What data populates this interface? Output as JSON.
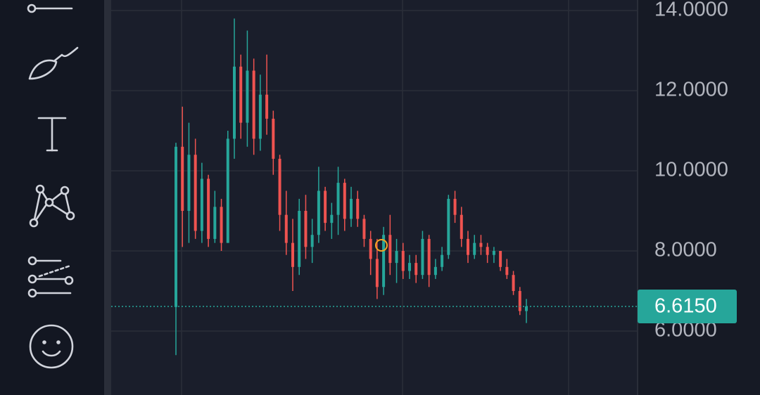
{
  "chart_data": {
    "type": "candlestick",
    "open": [
      6.6,
      10.6,
      9.0,
      10.4,
      8.5,
      9.8,
      8.3,
      9.1,
      8.2,
      10.8,
      12.6,
      11.2,
      12.5,
      10.8,
      11.9,
      11.3,
      10.3,
      8.9,
      8.2,
      7.6,
      9.0,
      8.1,
      8.4,
      9.5,
      8.7,
      8.9,
      9.7,
      8.8,
      9.3,
      8.8,
      8.3,
      7.8,
      7.1,
      8.4,
      7.7,
      8.0,
      7.5,
      7.7,
      7.4,
      8.3,
      7.4,
      7.6,
      7.9,
      9.3,
      8.9,
      8.3,
      7.9,
      8.2,
      8.1,
      7.9,
      8.0,
      7.6,
      7.4,
      7.0,
      6.5
    ],
    "high": [
      10.7,
      11.6,
      11.2,
      10.8,
      10.2,
      9.9,
      9.5,
      9.3,
      11.0,
      13.8,
      12.9,
      13.5,
      12.8,
      12.4,
      12.9,
      11.5,
      10.4,
      9.5,
      8.8,
      9.3,
      9.4,
      8.8,
      10.1,
      9.6,
      9.2,
      10.1,
      9.8,
      9.6,
      9.5,
      8.9,
      8.5,
      8.3,
      8.6,
      8.9,
      8.3,
      8.2,
      7.9,
      7.9,
      8.5,
      8.4,
      7.8,
      8.1,
      9.4,
      9.5,
      9.1,
      8.5,
      8.4,
      8.4,
      8.2,
      8.1,
      8.0,
      7.8,
      7.5,
      7.1,
      6.8
    ],
    "low": [
      5.4,
      8.1,
      8.2,
      8.3,
      8.2,
      8.1,
      8.2,
      8.0,
      8.2,
      10.3,
      10.8,
      10.6,
      10.4,
      10.5,
      10.9,
      9.9,
      8.5,
      7.9,
      7.0,
      7.4,
      7.8,
      7.7,
      8.2,
      8.5,
      8.3,
      8.4,
      8.5,
      8.6,
      8.6,
      8.1,
      7.4,
      6.8,
      6.9,
      7.4,
      7.2,
      7.3,
      7.3,
      7.2,
      7.3,
      7.1,
      7.3,
      7.5,
      7.8,
      8.7,
      8.1,
      7.7,
      7.8,
      7.9,
      7.7,
      7.7,
      7.5,
      7.3,
      6.9,
      6.4,
      6.2
    ],
    "close": [
      10.6,
      9.0,
      10.4,
      8.5,
      9.8,
      8.3,
      9.1,
      8.2,
      10.8,
      12.6,
      11.2,
      12.5,
      10.8,
      11.9,
      11.3,
      10.3,
      8.9,
      8.2,
      7.6,
      9.0,
      8.1,
      8.4,
      9.5,
      8.7,
      8.9,
      9.7,
      8.8,
      9.3,
      8.8,
      8.3,
      7.8,
      7.1,
      8.4,
      7.7,
      8.0,
      7.5,
      7.7,
      7.4,
      8.3,
      7.4,
      7.6,
      7.9,
      9.3,
      8.9,
      8.3,
      7.9,
      8.2,
      8.1,
      7.9,
      8.0,
      7.6,
      7.4,
      7.0,
      6.5,
      6.615
    ],
    "up_color": "#26a69a",
    "down_color": "#ef5350",
    "ylim": [
      4.404,
      14.263
    ],
    "yticks": [
      {
        "value": 6,
        "label": "6.0000"
      },
      {
        "value": 8,
        "label": "8.0000"
      },
      {
        "value": 10,
        "label": "10.0000"
      },
      {
        "value": 12,
        "label": "12.0000"
      },
      {
        "value": 14,
        "label": "14.0000"
      }
    ],
    "grid": true,
    "last_price": {
      "value": 6.615,
      "label": "6.6150"
    }
  }
}
